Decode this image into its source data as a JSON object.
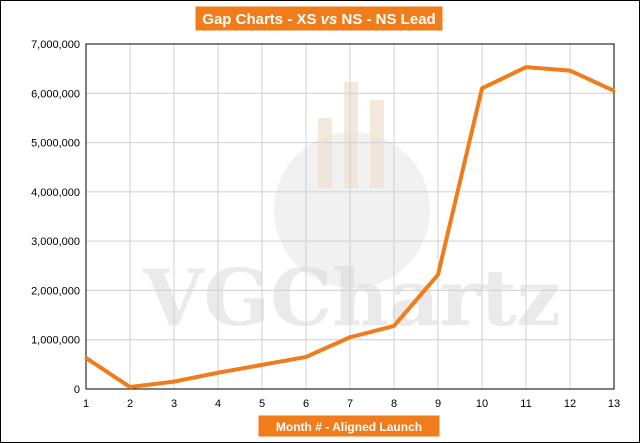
{
  "chart_data": {
    "type": "line",
    "title": {
      "prefix": "Gap Charts - XS ",
      "vs": "vs",
      "suffix": " NS - NS Lead"
    },
    "xlabel": "Month # - Aligned Launch",
    "ylabel": "",
    "x": [
      1,
      2,
      3,
      4,
      5,
      6,
      7,
      8,
      9,
      10,
      11,
      12,
      13
    ],
    "series": [
      {
        "values": [
          630000,
          40000,
          150000,
          330000,
          490000,
          650000,
          1050000,
          1280000,
          2320000,
          6100000,
          6530000,
          6460000,
          6050000
        ],
        "color": "#f07c1b"
      }
    ],
    "ylim": [
      0,
      7000000
    ],
    "yticks": [
      "0",
      "1,000,000",
      "2,000,000",
      "3,000,000",
      "4,000,000",
      "5,000,000",
      "6,000,000",
      "7,000,000"
    ],
    "xticks": [
      "1",
      "2",
      "3",
      "4",
      "5",
      "6",
      "7",
      "8",
      "9",
      "10",
      "11",
      "12",
      "13"
    ],
    "grid": true,
    "legend": "none",
    "watermark": "VGChartz",
    "colors": {
      "accent": "#f07c1b",
      "title_bg": "#f07c1b",
      "grid": "#d0d0d0",
      "plot_border": "#000000"
    }
  }
}
